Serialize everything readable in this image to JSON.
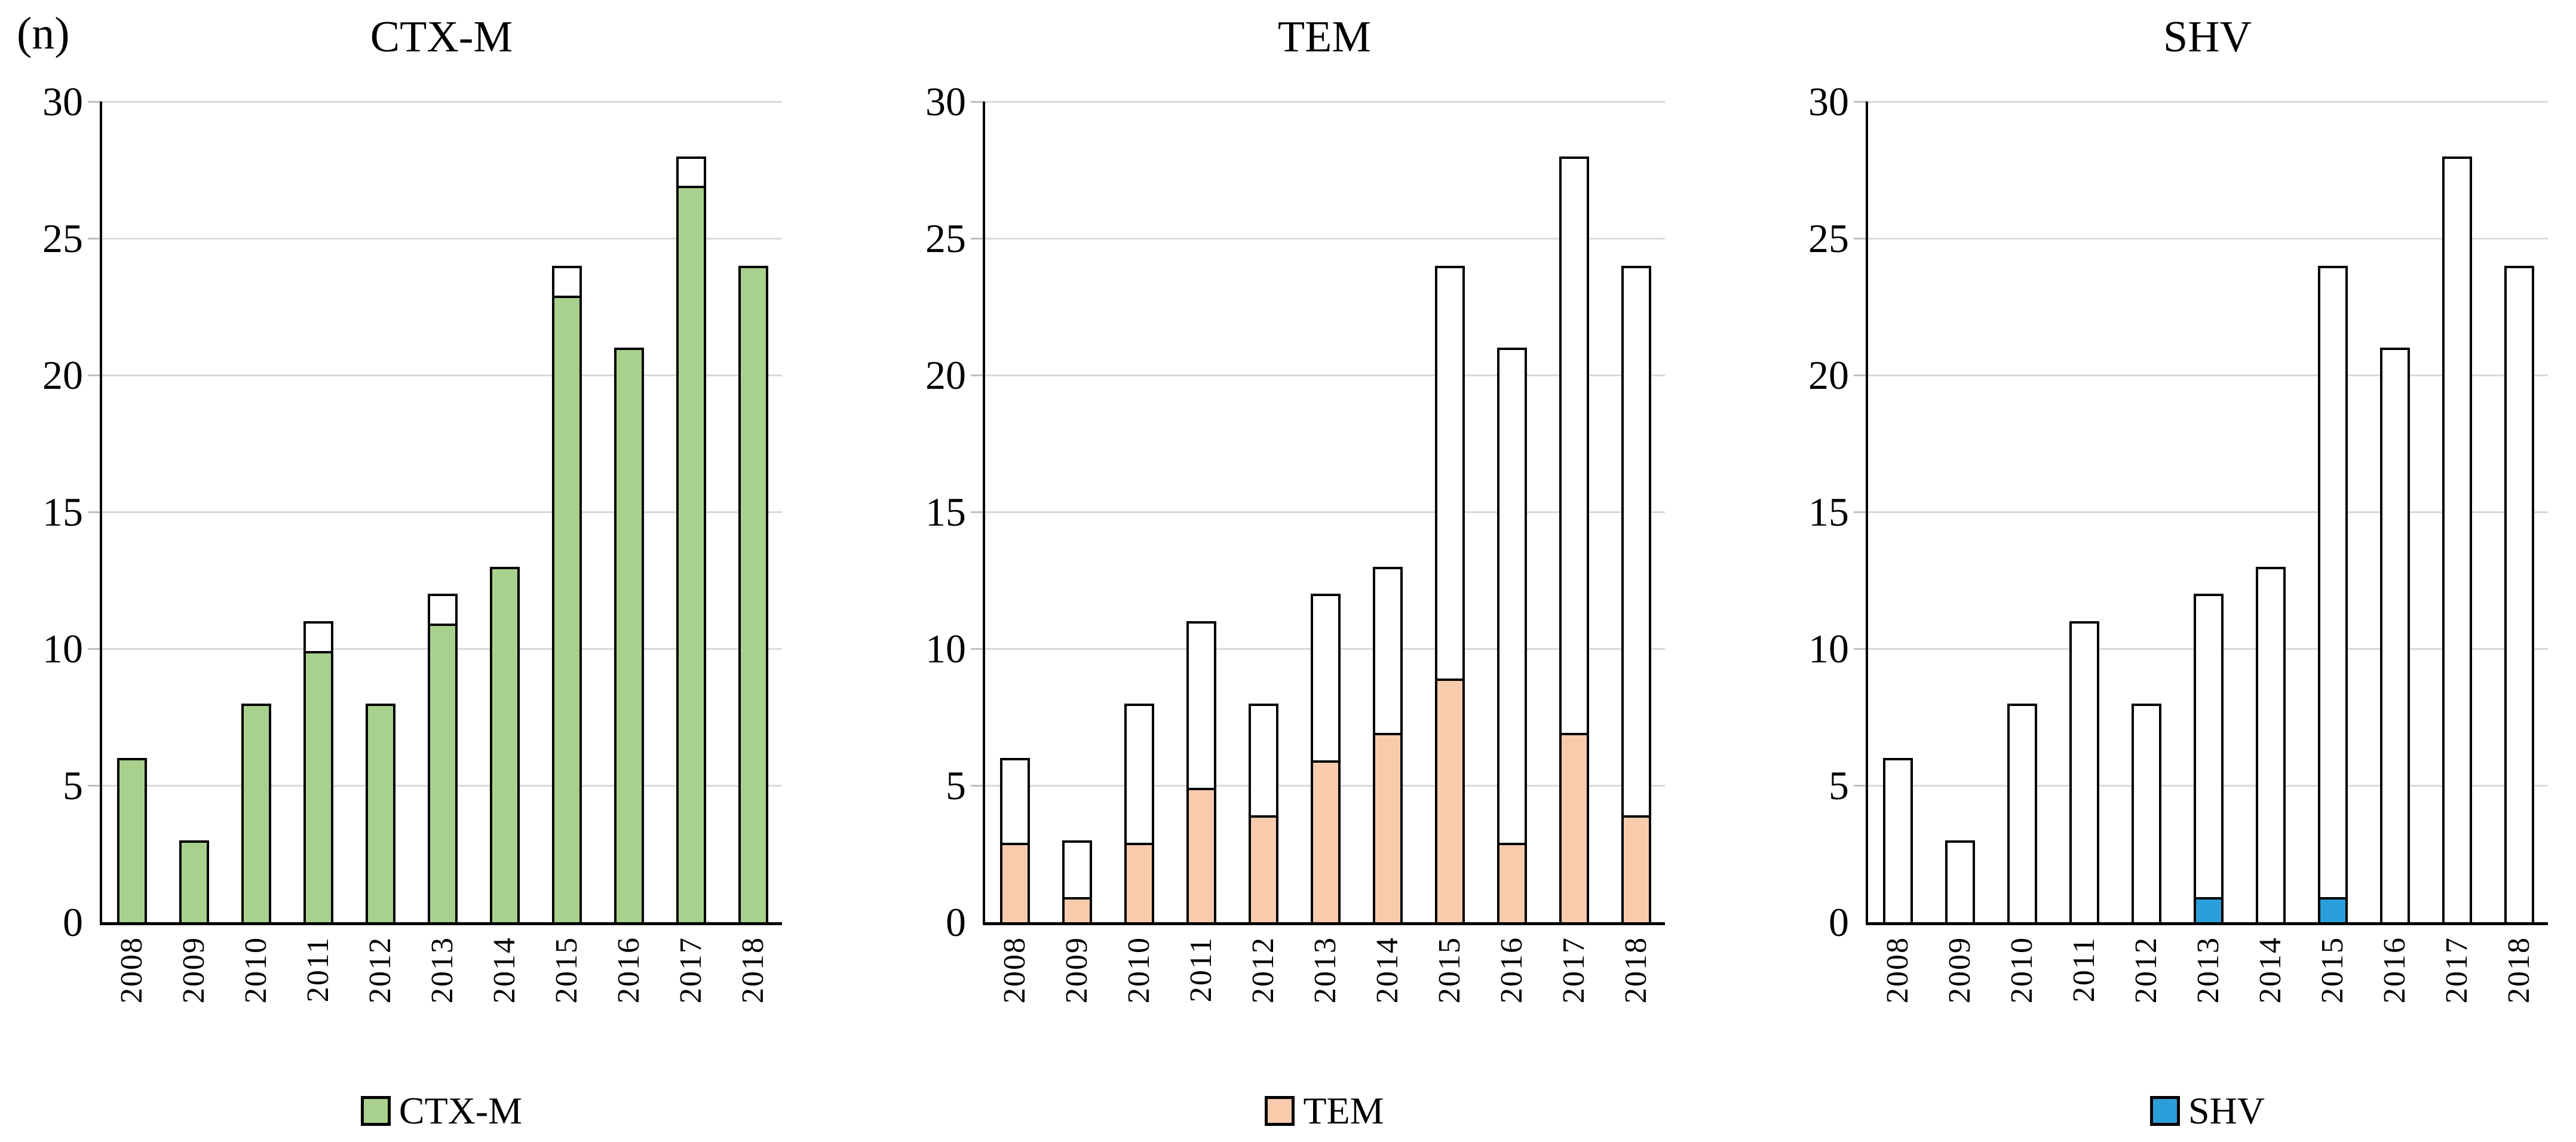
{
  "figure": {
    "background": "#FFFFFF"
  },
  "chart_data": {
    "type": "bar",
    "subtype": "stacked",
    "title": "",
    "categories": [
      "2008",
      "2009",
      "2010",
      "2011",
      "2012",
      "2013",
      "2014",
      "2015",
      "2016",
      "2017",
      "2018"
    ],
    "y_axis": {
      "label": "(n)",
      "ticks": [
        0,
        5,
        10,
        15,
        20,
        25,
        30
      ],
      "range": [
        0,
        30
      ],
      "gridlines": true,
      "gridline_color": "#D9D9D9",
      "axis_color": "#000000"
    },
    "bar_outline_color": "#000000",
    "unfilled_segment_color": "#FFFFFF",
    "charts": [
      {
        "title": "CTX-M",
        "legend_label": "CTX-M",
        "color": "#A9D18E",
        "values": [
          6,
          3,
          8,
          10,
          8,
          11,
          13,
          23,
          21,
          27,
          24
        ],
        "totals": [
          6,
          3,
          8,
          11,
          8,
          12,
          13,
          24,
          21,
          28,
          24
        ],
        "legend_position": "bottom-center"
      },
      {
        "title": "TEM",
        "legend_label": "TEM",
        "color": "#F8CBAD",
        "values": [
          3,
          1,
          3,
          5,
          4,
          6,
          7,
          9,
          3,
          7,
          4
        ],
        "totals": [
          6,
          3,
          8,
          11,
          8,
          12,
          13,
          24,
          21,
          28,
          24
        ],
        "legend_position": "bottom-center"
      },
      {
        "title": "SHV",
        "legend_label": "SHV",
        "color": "#2B9FD9",
        "values": [
          0,
          0,
          0,
          0,
          0,
          1,
          0,
          1,
          0,
          0,
          0
        ],
        "totals": [
          6,
          3,
          8,
          11,
          8,
          12,
          13,
          24,
          21,
          28,
          24
        ],
        "legend_position": "bottom-center"
      }
    ]
  }
}
